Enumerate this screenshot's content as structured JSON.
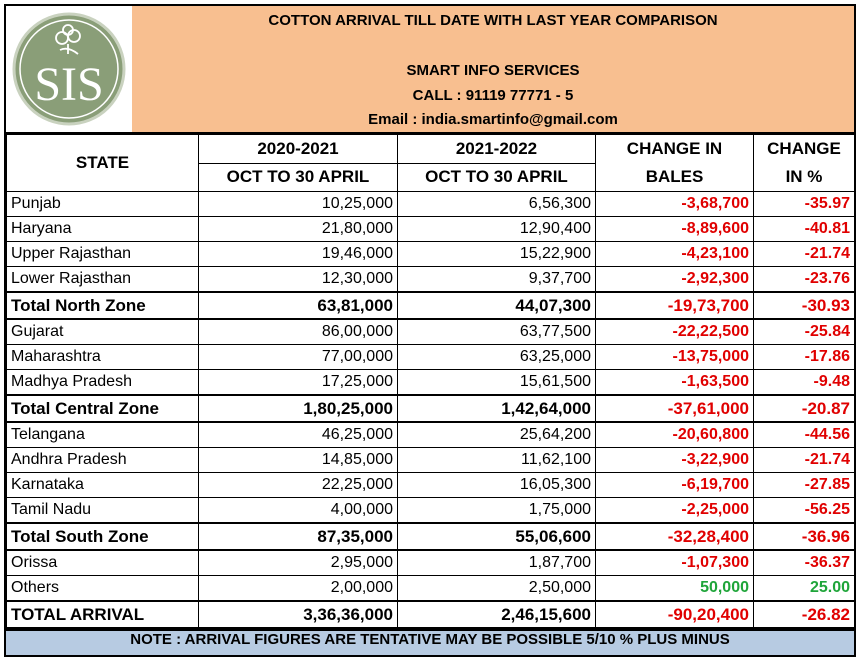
{
  "header": {
    "title": "COTTON ARRIVAL TILL DATE WITH LAST YEAR COMPARISON",
    "company": "SMART INFO SERVICES",
    "call": "CALL : 91119 77771 - 5",
    "email": "Email : india.smartinfo@gmail.com",
    "logo_text": "SIS"
  },
  "columns": {
    "state": "STATE",
    "y1": "2020-2021",
    "y1_sub": "OCT TO 30 APRIL",
    "y2": "2021-2022",
    "y2_sub": "OCT TO 30 APRIL",
    "change_bales": "CHANGE IN BALES",
    "change_pct": "CHANGE IN %"
  },
  "rows": [
    {
      "state": "Punjab",
      "y1": "10,25,000",
      "y2": "6,56,300",
      "bales": "-3,68,700",
      "pct": "-35.97",
      "total": false,
      "sign": "neg"
    },
    {
      "state": "Haryana",
      "y1": "21,80,000",
      "y2": "12,90,400",
      "bales": "-8,89,600",
      "pct": "-40.81",
      "total": false,
      "sign": "neg"
    },
    {
      "state": "Upper Rajasthan",
      "y1": "19,46,000",
      "y2": "15,22,900",
      "bales": "-4,23,100",
      "pct": "-21.74",
      "total": false,
      "sign": "neg"
    },
    {
      "state": "Lower Rajasthan",
      "y1": "12,30,000",
      "y2": "9,37,700",
      "bales": "-2,92,300",
      "pct": "-23.76",
      "total": false,
      "sign": "neg"
    },
    {
      "state": "Total North Zone",
      "y1": "63,81,000",
      "y2": "44,07,300",
      "bales": "-19,73,700",
      "pct": "-30.93",
      "total": true,
      "sign": "neg"
    },
    {
      "state": "Gujarat",
      "y1": "86,00,000",
      "y2": "63,77,500",
      "bales": "-22,22,500",
      "pct": "-25.84",
      "total": false,
      "sign": "neg"
    },
    {
      "state": "Maharashtra",
      "y1": "77,00,000",
      "y2": "63,25,000",
      "bales": "-13,75,000",
      "pct": "-17.86",
      "total": false,
      "sign": "neg"
    },
    {
      "state": "Madhya Pradesh",
      "y1": "17,25,000",
      "y2": "15,61,500",
      "bales": "-1,63,500",
      "pct": "-9.48",
      "total": false,
      "sign": "neg"
    },
    {
      "state": "Total Central Zone",
      "y1": "1,80,25,000",
      "y2": "1,42,64,000",
      "bales": "-37,61,000",
      "pct": "-20.87",
      "total": true,
      "sign": "neg"
    },
    {
      "state": "Telangana",
      "y1": "46,25,000",
      "y2": "25,64,200",
      "bales": "-20,60,800",
      "pct": "-44.56",
      "total": false,
      "sign": "neg"
    },
    {
      "state": "Andhra Pradesh",
      "y1": "14,85,000",
      "y2": "11,62,100",
      "bales": "-3,22,900",
      "pct": "-21.74",
      "total": false,
      "sign": "neg"
    },
    {
      "state": "Karnataka",
      "y1": "22,25,000",
      "y2": "16,05,300",
      "bales": "-6,19,700",
      "pct": "-27.85",
      "total": false,
      "sign": "neg"
    },
    {
      "state": "Tamil Nadu",
      "y1": "4,00,000",
      "y2": "1,75,000",
      "bales": "-2,25,000",
      "pct": "-56.25",
      "total": false,
      "sign": "neg"
    },
    {
      "state": "Total South Zone",
      "y1": "87,35,000",
      "y2": "55,06,600",
      "bales": "-32,28,400",
      "pct": "-36.96",
      "total": true,
      "sign": "neg"
    },
    {
      "state": "Orissa",
      "y1": "2,95,000",
      "y2": "1,87,700",
      "bales": "-1,07,300",
      "pct": "-36.37",
      "total": false,
      "sign": "neg"
    },
    {
      "state": "Others",
      "y1": "2,00,000",
      "y2": "2,50,000",
      "bales": "50,000",
      "pct": "25.00",
      "total": false,
      "sign": "pos"
    },
    {
      "state": "TOTAL ARRIVAL",
      "y1": "3,36,36,000",
      "y2": "2,46,15,600",
      "bales": "-90,20,400",
      "pct": "-26.82",
      "total": true,
      "sign": "neg"
    }
  ],
  "note": "NOTE : ARRIVAL FIGURES ARE TENTATIVE MAY BE POSSIBLE 5/10 % PLUS MINUS",
  "colors": {
    "banner": "#f8bf90",
    "note": "#b7cbe2",
    "negative": "#e00000",
    "positive": "#1fa53a",
    "logo": "#8a9e78"
  }
}
